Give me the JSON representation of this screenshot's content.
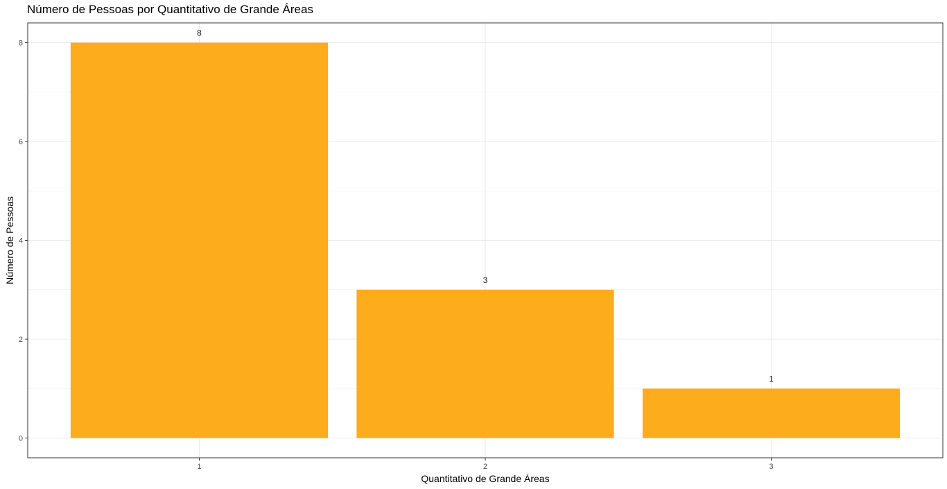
{
  "chart_data": {
    "type": "bar",
    "title": "Número de Pessoas por Quantitativo de Grande Áreas",
    "xlabel": "Quantitativo de Grande Áreas",
    "ylabel": "Número de Pessoas",
    "categories": [
      "1",
      "2",
      "3"
    ],
    "values": [
      8,
      3,
      1
    ],
    "data_labels": [
      "8",
      "3",
      "1"
    ],
    "y_ticks": [
      0,
      2,
      4,
      6,
      8
    ],
    "ylim": [
      -0.4,
      8.4
    ],
    "grid": true,
    "bar_color": "#FDAC1B",
    "grid_color": "#EBEBEB",
    "panel_border_color": "#333333"
  }
}
